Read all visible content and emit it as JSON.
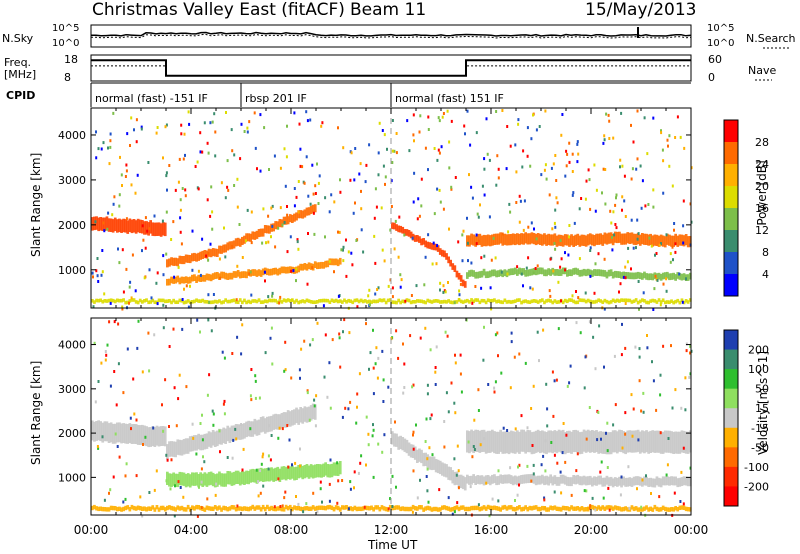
{
  "header": {
    "title": "Christmas Valley East (fitACF)",
    "beam": "Beam 11",
    "date": "15/May/2013"
  },
  "nsky_panel": {
    "left_label": "N.Sky",
    "right_label": "N.Search",
    "left_ticks": [
      "10^5",
      "10^0"
    ],
    "right_ticks": [
      "10^5",
      "10^0"
    ]
  },
  "freq_panel": {
    "left_label_line1": "Freq.",
    "left_label_line2": "[MHz]",
    "right_label": "Nave",
    "left_ticks": [
      "18",
      "8"
    ],
    "right_ticks": [
      "60",
      "0"
    ],
    "frequency_mhz": [
      [
        0,
        16
      ],
      [
        3,
        10
      ],
      [
        15,
        16
      ],
      [
        24,
        16
      ]
    ],
    "nave": [
      [
        0,
        35
      ],
      [
        3,
        12
      ],
      [
        15,
        35
      ],
      [
        24,
        35
      ]
    ]
  },
  "cpid": {
    "label": "CPID",
    "modes": [
      {
        "name": "normal (fast) -151 IF",
        "start": 0,
        "end": 6
      },
      {
        "name": "rbsp 201 IF",
        "start": 6,
        "end": 12
      },
      {
        "name": "normal (fast) 151 IF",
        "start": 12,
        "end": 24
      }
    ]
  },
  "chart_data": [
    {
      "type": "heatmap",
      "xlabel": "",
      "ylabel": "Slant Range [km]",
      "ylim": [
        150,
        4600
      ],
      "yticks": [
        "1000",
        "2000",
        "3000",
        "4000"
      ],
      "colorbar_label": "Power [dB]",
      "colorbar_ticks": [
        "28",
        "24",
        "20",
        "16",
        "12",
        "8",
        "4"
      ],
      "colors": [
        "#ff0000",
        "#ff6a00",
        "#ffb000",
        "#dcdc00",
        "#7dbf4a",
        "#3a8d6e",
        "#1f52c8",
        "#0000ff"
      ],
      "bands": [
        {
          "times": [
            0,
            1,
            2,
            3
          ],
          "ranges": [
            2050,
            2000,
            1950,
            1900
          ],
          "width": 300,
          "color": "#ff4000"
        },
        {
          "times": [
            3,
            4,
            5,
            6,
            7,
            8,
            9
          ],
          "ranges": [
            1150,
            1250,
            1400,
            1650,
            1900,
            2150,
            2400
          ],
          "width": 180,
          "color": "#ff6a00"
        },
        {
          "times": [
            3,
            4,
            5,
            6,
            7,
            8,
            9,
            10
          ],
          "ranges": [
            750,
            800,
            850,
            900,
            950,
            1000,
            1100,
            1200
          ],
          "width": 150,
          "color": "#ff8a00"
        },
        {
          "times": [
            12,
            13,
            14,
            15
          ],
          "ranges": [
            2000,
            1700,
            1400,
            600
          ],
          "width": 150,
          "color": "#ff4000"
        },
        {
          "times": [
            15,
            17,
            19,
            21,
            23,
            24
          ],
          "ranges": [
            1650,
            1700,
            1650,
            1700,
            1650,
            1650
          ],
          "width": 250,
          "color": "#ff6a00"
        },
        {
          "times": [
            15,
            17,
            19,
            21,
            23,
            24
          ],
          "ranges": [
            900,
            950,
            950,
            900,
            850,
            850
          ],
          "width": 150,
          "color": "#7dbf4a"
        },
        {
          "times": [
            0,
            2,
            4,
            6,
            8,
            10,
            12,
            14,
            16,
            18,
            20,
            22,
            24
          ],
          "ranges": [
            300,
            300,
            300,
            300,
            300,
            300,
            300,
            300,
            300,
            300,
            300,
            300,
            300
          ],
          "width": 80,
          "color": "#dcdc00"
        }
      ]
    },
    {
      "type": "heatmap",
      "xlabel": "Time UT",
      "ylabel": "Slant Range [km]",
      "ylim": [
        150,
        4600
      ],
      "yticks": [
        "1000",
        "2000",
        "3000",
        "4000"
      ],
      "xticks": [
        "00:00",
        "04:00",
        "08:00",
        "12:00",
        "16:00",
        "20:00",
        "00:00"
      ],
      "colorbar_label": "Velocity [m s^-1]",
      "colorbar_ticks": [
        "200",
        "100",
        "50",
        "15",
        "-15",
        "-50",
        "-100",
        "-200"
      ],
      "colors": [
        "#1f3fb0",
        "#3a8d6e",
        "#2fbf2f",
        "#8fdf5f",
        "#c8c8c8",
        "#ffb000",
        "#ff6a00",
        "#ff2a00",
        "#ff0000"
      ],
      "bands": [
        {
          "times": [
            0,
            1,
            2,
            3
          ],
          "ranges": [
            2050,
            2000,
            1950,
            1900
          ],
          "width": 450,
          "color": "#c8c8c8"
        },
        {
          "times": [
            3,
            5,
            7,
            9
          ],
          "ranges": [
            1600,
            1900,
            2200,
            2500
          ],
          "width": 350,
          "color": "#c8c8c8"
        },
        {
          "times": [
            3,
            5,
            7,
            9,
            10
          ],
          "ranges": [
            950,
            950,
            1050,
            1150,
            1200
          ],
          "width": 300,
          "color": "#8fdf5f"
        },
        {
          "times": [
            12,
            13,
            14,
            15
          ],
          "ranges": [
            1900,
            1500,
            1200,
            800
          ],
          "width": 300,
          "color": "#c8c8c8"
        },
        {
          "times": [
            15,
            18,
            21,
            24
          ],
          "ranges": [
            1800,
            1800,
            1800,
            1800
          ],
          "width": 500,
          "color": "#c8c8c8"
        },
        {
          "times": [
            15,
            18,
            21,
            24
          ],
          "ranges": [
            950,
            950,
            900,
            900
          ],
          "width": 200,
          "color": "#c8c8c8"
        },
        {
          "times": [
            0,
            4,
            8,
            12,
            16,
            20,
            24
          ],
          "ranges": [
            300,
            300,
            300,
            300,
            300,
            300,
            300
          ],
          "width": 100,
          "color": "#ffb000"
        }
      ]
    }
  ]
}
